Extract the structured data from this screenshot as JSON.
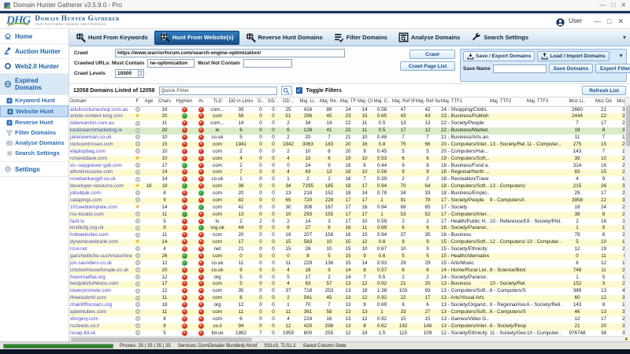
{
  "window": {
    "title": "Domain Hunter Gatherer v3.5.9.0 - Pro",
    "controls": [
      "—",
      "□",
      "✕"
    ]
  },
  "header": {
    "logo_abbr": "DHG",
    "app_name": "Domain Hunter Gatherer",
    "tagline": "Hunt And Gather Quality Aged Domains",
    "user_label": "User"
  },
  "tabs": [
    {
      "label": "Hunt From Keywords",
      "icon": "hunt",
      "active": false
    },
    {
      "label": "Hunt From Website(s)",
      "icon": "hunt",
      "active": true
    },
    {
      "label": "Reverse Hunt Domains",
      "icon": "hunt",
      "active": false
    },
    {
      "label": "Filter Domains",
      "icon": "filter",
      "active": false
    },
    {
      "label": "Analyse Domains",
      "icon": "analyse",
      "active": false
    },
    {
      "label": "Search Settings",
      "icon": "wrench",
      "active": false
    }
  ],
  "sidebar": {
    "items": [
      {
        "label": "Home",
        "icon": "home",
        "type": "top"
      },
      {
        "label": "Auction Hunter",
        "icon": "gavel",
        "type": "top"
      },
      {
        "label": "Web2.0 Hunter",
        "icon": "ring",
        "type": "top"
      },
      {
        "label": "Expired Domains",
        "icon": "globe",
        "type": "top",
        "active_section": true
      },
      {
        "label": "Keyword Hunt",
        "icon": "bolt",
        "type": "sub"
      },
      {
        "label": "Website Hunt",
        "icon": "bolt",
        "type": "sub",
        "selected": true
      },
      {
        "label": "Reverse Hunt",
        "icon": "bolt",
        "type": "sub"
      },
      {
        "label": "Filter Domains",
        "icon": "funnel",
        "type": "sub"
      },
      {
        "label": "Analyse Domains",
        "icon": "grid",
        "type": "sub"
      },
      {
        "label": "Search Settings",
        "icon": "gear",
        "type": "sub"
      },
      {
        "label": "Settings",
        "icon": "gear",
        "type": "top",
        "settings": true
      }
    ]
  },
  "crawl_form": {
    "crawl_label": "Crawl",
    "crawl_url": "https://www.warriorforum.com/search-engine-optimization/",
    "must_contain_label": "Crawled URLs: Must Contain",
    "must_contain_value": "ne-optimization",
    "must_not_contain_label": "Must Not Contain",
    "must_not_contain_value": "",
    "crawl_levels_label": "Crawl Levels",
    "crawl_levels_value": "10000",
    "crawl_button": "Crawl",
    "crawl_page_list_button": "Crawl Page List"
  },
  "io_panel": {
    "save_tab": "Save / Export Domains",
    "load_tab": "Load / Import Domains",
    "save_name_label": "Save Name",
    "save_name_value": "",
    "save_button": "Save Domains",
    "export_button": "Export Filtered"
  },
  "toolbar": {
    "count_text": "12058 Domains Listed of 12058",
    "quick_filter_placeholder": "Quick Filter",
    "toggle_filters_label": "Toggle Filters",
    "toggle_filters_checked": true,
    "refresh_button": "Refresh List"
  },
  "table": {
    "columns": [
      "Domain",
      "F",
      "Age",
      "Chars",
      "Hyphen",
      "#s",
      "TLD",
      "DD in Links",
      "D..",
      "DD ..",
      "DD ..",
      "Maj. Li..",
      "Maj. Re..",
      "Maj. TF",
      "Maj. CF",
      "Maj. C..",
      "Maj. Ref IPs",
      "Maj. Ref Su..",
      "Maj. TTF1",
      "Maj. TTF2",
      "Maj. TTF3",
      "Moz Li..",
      "Moz DA",
      "Moz PA"
    ],
    "highlight_row": 3,
    "rows": [
      [
        "adultcostumeshop.com.au",
        "dot",
        "",
        16,
        "n",
        "n",
        "com...",
        39,
        0,
        0,
        25,
        418,
        88,
        24,
        14,
        "0.58",
        47,
        42,
        "24 - Shopping/Clothi...",
        "",
        "",
        2660,
        21,
        31
      ],
      [
        "article-content-king.com",
        "star",
        "",
        20,
        "y",
        "n",
        "com",
        56,
        0,
        0,
        51,
        296,
        45,
        23,
        15,
        "0.65",
        43,
        43,
        "23 - Business/Publish...",
        "",
        "",
        2444,
        22,
        34
      ],
      [
        "dalereardon.com.au",
        "dot",
        "",
        11,
        "n",
        "n",
        "com...",
        14,
        0,
        0,
        2,
        34,
        14,
        22,
        11,
        "0.5",
        13,
        13,
        "22 - Society/People",
        "",
        "",
        7,
        17,
        21
      ],
      [
        "localsearchmarketing.ie",
        "dot",
        "",
        20,
        "n",
        "n",
        "ie",
        6,
        0,
        0,
        6,
        128,
        41,
        22,
        11,
        "0.5",
        17,
        12,
        "22 - Business/Market...",
        "",
        "",
        19,
        8,
        30
      ],
      [
        "janenewman.co.uk",
        "dot",
        "",
        10,
        "n",
        "n",
        "co.uk",
        5,
        0,
        0,
        2,
        20,
        7,
        21,
        10,
        "0.48",
        7,
        7,
        "21 - Business/Arts an...",
        "",
        "",
        11,
        7,
        19
      ],
      [
        "clickcentricseo.com",
        "dot",
        "",
        15,
        "n",
        "n",
        "com",
        1941,
        0,
        0,
        1942,
        3063,
        183,
        20,
        16,
        "0.8",
        75,
        66,
        "20 - Computers/Inter...",
        "13 - Society/Rel...",
        "11 - Computer...",
        275,
        15,
        28
      ],
      [
        "elaptopbag.com",
        "dot",
        "",
        10,
        "n",
        "n",
        "com",
        2,
        0,
        0,
        2,
        10,
        6,
        20,
        9,
        "0.45",
        5,
        5,
        "20 - Computers/Har...",
        "",
        "",
        143,
        7,
        17
      ],
      [
        "ronanddave.com",
        "star",
        "",
        10,
        "n",
        "n",
        "com",
        4,
        0,
        0,
        4,
        15,
        6,
        19,
        10,
        "0.53",
        6,
        6,
        "19 - Computers/Soft...",
        "",
        "",
        39,
        10,
        21
      ],
      [
        "xn--saygoever-ypb.com",
        "dot",
        "",
        17,
        "y",
        "n",
        "com",
        2,
        0,
        0,
        0,
        24,
        9,
        18,
        8,
        "0.44",
        9,
        8,
        "18 - Business/Food a...",
        "",
        "",
        314,
        16,
        20
      ],
      [
        "aftonlimousine.com",
        "dot",
        "",
        14,
        "n",
        "n",
        "com",
        7,
        0,
        0,
        4,
        43,
        13,
        18,
        10,
        "0.56",
        9,
        9,
        "18 - Regional/North ...",
        "",
        "",
        83,
        15,
        26
      ],
      [
        "rosebankargyll.co.uk",
        "dot",
        "",
        14,
        "n",
        "n",
        "co.uk",
        1,
        0,
        0,
        1,
        2,
        2,
        18,
        7,
        "0.39",
        2,
        2,
        "18 - Recreation/Travel",
        "",
        "",
        4,
        9,
        15
      ],
      [
        "developer-resource.com",
        "star",
        18,
        18,
        "y",
        "n",
        "com",
        38,
        0,
        0,
        34,
        7295,
        185,
        18,
        17,
        "0.94",
        70,
        64,
        "18 - Computers/Soft...",
        "13 - Computers/...",
        "",
        215,
        26,
        35
      ],
      [
        "jobs4pak.com",
        "dot",
        "",
        8,
        "n",
        "y",
        "com",
        20,
        0,
        0,
        13,
        218,
        152,
        18,
        14,
        "0.78",
        34,
        33,
        "18 - Business/Emplo...",
        "",
        "",
        29,
        17,
        23
      ],
      [
        "catapings.com",
        "dot",
        "",
        9,
        "n",
        "n",
        "com",
        82,
        0,
        0,
        65,
        720,
        228,
        17,
        17,
        "1",
        91,
        78,
        "17 - Society/People",
        "9 - Computers/I...",
        "",
        3958,
        22,
        36
      ],
      [
        "101webtemplate.com",
        "star",
        "",
        14,
        "n",
        "y",
        "com",
        42,
        0,
        0,
        30,
        308,
        167,
        17,
        16,
        "0.94",
        69,
        65,
        "17 - Society",
        "",
        "",
        19,
        24,
        26
      ],
      [
        "rss-locator.com",
        "dot",
        "",
        11,
        "y",
        "n",
        "com",
        13,
        0,
        0,
        10,
        293,
        155,
        17,
        17,
        "1",
        53,
        52,
        "17 - Computers/Inter...",
        "",
        "",
        38,
        8,
        27
      ],
      [
        "fazit.tv",
        "dot",
        "",
        5,
        "n",
        "n",
        "tv",
        2,
        2,
        0,
        2,
        14,
        3,
        17,
        10,
        "0.59",
        2,
        2,
        "17 - Health/Public H...",
        "10 - Reference/E...",
        "8 - Society/Phil...",
        2,
        16,
        11
      ],
      [
        "kindle3g.org.uk",
        "dot",
        "",
        8,
        "n",
        "y",
        "org.uk",
        44,
        0,
        0,
        8,
        27,
        6,
        16,
        11,
        "0.69",
        6,
        6,
        "16 - Society/Paranor...",
        "",
        "",
        1,
        9,
        13
      ],
      [
        "hnbwebsites.com",
        "dot",
        "",
        11,
        "n",
        "n",
        "com",
        20,
        0,
        0,
        18,
        207,
        158,
        16,
        15,
        "0.94",
        37,
        35,
        "16 - Business",
        "",
        "",
        79,
        8,
        29
      ],
      [
        "dynamicwebrank.com",
        "star",
        "",
        14,
        "n",
        "n",
        "com",
        17,
        0,
        0,
        15,
        583,
        10,
        15,
        12,
        "0.8",
        9,
        9,
        "15 - Computers/Soft...",
        "12 - Computers/...",
        "10 - Computer...",
        5,
        10,
        18
      ],
      [
        "rcuv.net",
        "dot",
        "",
        4,
        "n",
        "n",
        "net",
        21,
        0,
        0,
        15,
        28,
        10,
        15,
        10,
        "0.67",
        10,
        9,
        "15 - Society/Ethnicity",
        "",
        "",
        12,
        19,
        24
      ],
      [
        "ganzheitliche-suchmaschine.c...",
        "dot",
        "",
        26,
        "y",
        "n",
        "com",
        0,
        0,
        0,
        0,
        8,
        5,
        15,
        9,
        "0.6",
        5,
        5,
        "15 - Health/Alternative",
        "",
        "",
        0,
        11,
        9
      ],
      [
        "jon-saunders.co.uk",
        "dot",
        "",
        12,
        "y",
        "n",
        "co.uk",
        11,
        0,
        0,
        11,
        229,
        136,
        15,
        14,
        "0.93",
        29,
        29,
        "15 - Arts/Music",
        "",
        "",
        6,
        12,
        15
      ],
      [
        "chickenhouseforsale.co.uk",
        "dot",
        "",
        20,
        "n",
        "n",
        "co.uk",
        9,
        0,
        0,
        4,
        18,
        9,
        14,
        8,
        "0.57",
        8,
        8,
        "14 - Home/Rural Livi...",
        "8 - Science/Biolo...",
        "",
        748,
        11,
        23
      ],
      [
        "freexmailfax.org",
        "dot",
        "",
        12,
        "n",
        "n",
        "org",
        5,
        0,
        0,
        5,
        17,
        2,
        14,
        7,
        "0.5",
        2,
        2,
        "14 - Society/Paranor...",
        "",
        "",
        1,
        5,
        10
      ],
      [
        "bestjobsforfelons.com",
        "dot",
        "",
        17,
        "n",
        "n",
        "com",
        5,
        0,
        0,
        4,
        63,
        57,
        13,
        12,
        "0.92",
        21,
        20,
        "13 - Business",
        "10 - Society/Rel...",
        "",
        152,
        3,
        29
      ],
      [
        "towerpromote.com",
        "dot",
        "",
        12,
        "n",
        "n",
        "com",
        35,
        0,
        0,
        37,
        718,
        253,
        13,
        18,
        "1.38",
        103,
        93,
        "13 - Computers/Soft...",
        "6 - Computers/S...",
        "",
        389,
        13,
        40
      ],
      [
        "ifreeisubmit.com",
        "dot",
        "",
        11,
        "n",
        "n",
        "com",
        8,
        0,
        0,
        2,
        561,
        45,
        13,
        12,
        "0.92",
        22,
        17,
        "13 - Arts/Visual Arts",
        "",
        "",
        60,
        12,
        33
      ],
      [
        "chairliftforstairs.org",
        "dot",
        "",
        18,
        "n",
        "n",
        "org",
        12,
        0,
        0,
        1,
        70,
        7,
        13,
        9,
        "0.69",
        6,
        6,
        "13 - Society/Organiz...",
        "8 - Regional/Asia",
        "6 - Society/Reli...",
        143,
        8,
        18
      ],
      [
        "apleintubes.com",
        "dot",
        "",
        11,
        "n",
        "n",
        "com",
        11,
        0,
        0,
        11,
        361,
        58,
        13,
        13,
        "1",
        33,
        27,
        "13 - Computers/Soft...",
        "6 - Computers/S...",
        "",
        46,
        13,
        31
      ],
      [
        "xforgery.com",
        "dot",
        "",
        8,
        "n",
        "n",
        "com",
        6,
        0,
        0,
        4,
        224,
        16,
        13,
        12,
        "0.92",
        15,
        15,
        "13 - Games/Video G...",
        "",
        "",
        12,
        17,
        23
      ],
      [
        "rssfeeds.co.il",
        "dot",
        "",
        8,
        "n",
        "n",
        "co.il",
        94,
        0,
        0,
        12,
        420,
        298,
        13,
        8,
        "0.62",
        192,
        148,
        "13 - Computers/Inter...",
        "6 - Society/People",
        "",
        21,
        20,
        32
      ],
      [
        "recap.ltd.uk",
        "dot",
        "",
        5,
        "n",
        "n",
        "ltd.uk",
        1982,
        7,
        0,
        1959,
        600,
        255,
        12,
        18,
        "1.5",
        115,
        109,
        "12 - Society/Ethnicity",
        "11 - Society/Gen...",
        "10 - Computer...",
        976748,
        38,
        34
      ],
      [
        "ancient-voices.com",
        "dot",
        "",
        14,
        "y",
        "n",
        "com",
        7,
        0,
        0,
        7,
        59,
        16,
        12,
        12,
        "1",
        16,
        15,
        "12 - Recreation/Travel",
        "",
        "",
        37,
        11,
        24
      ]
    ]
  },
  "status": {
    "progress_percent": 100,
    "segments": [
      "Proxies: 25 | 25 | 25 | 25",
      "Services: DomDetailer Bundled| Ahref",
      "SSLv3, TLS1.2",
      "Saved Column State"
    ]
  },
  "colors": {
    "accent_blue": "#1b5fa0",
    "active_tab": "#174f86",
    "row_alt": "#fdfad2",
    "row_highlight": "#d9ecca",
    "bad_red": "#d63a22",
    "good_green": "#3fa23c",
    "progress_green": "#2f9a2f",
    "link_purple": "#4d4bb5"
  }
}
